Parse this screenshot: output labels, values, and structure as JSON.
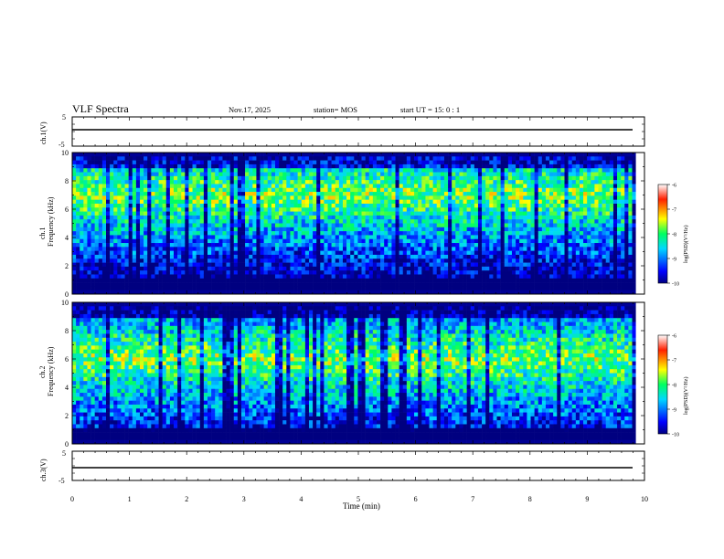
{
  "header": {
    "title": "VLF Spectra",
    "date": "Nov.17, 2025",
    "station": "station= MOS",
    "start": "start  UT =  15: 0  : 1"
  },
  "colorbar_label": "log(PSD)(V²/Hz)",
  "chart_data": [
    {
      "type": "line",
      "name": "ch1-waveform",
      "ylabel": "ch.1(V)",
      "ylim": [
        -5,
        5
      ],
      "ticks": [
        "5",
        "-5"
      ],
      "baseline_value": 0,
      "x_range": [
        0,
        9.85
      ]
    },
    {
      "type": "heatmap",
      "name": "ch1-spectrogram",
      "ylabel": "ch.1\nFrequency (kHz)",
      "ylabel_top": "ch.1",
      "ylabel_bottom": "Frequency (kHz)",
      "ylim": [
        0,
        10
      ],
      "yticks": [
        "0",
        "2",
        "4",
        "6",
        "8",
        "10"
      ],
      "colorbar": {
        "min": -10,
        "max": -6,
        "ticks": [
          "-6",
          "-7",
          "-8",
          "-9",
          "-10"
        ],
        "label": "log(PSD)(V²/Hz)"
      },
      "profile_khz": [
        0.5,
        9.5
      ],
      "dominant_band_khz": [
        5,
        9
      ]
    },
    {
      "type": "heatmap",
      "name": "ch2-spectrogram",
      "ylabel_top": "ch.2",
      "ylabel_bottom": "Frequency (kHz)",
      "ylim": [
        0,
        10
      ],
      "yticks": [
        "0",
        "2",
        "4",
        "6",
        "8",
        "10"
      ],
      "colorbar": {
        "min": -10,
        "max": -6,
        "ticks": [
          "-6",
          "-7",
          "-8",
          "-9",
          "-10"
        ],
        "label": "log(PSD)(V²/Hz)"
      },
      "dominant_band_khz": [
        4,
        8
      ]
    },
    {
      "type": "line",
      "name": "ch3-waveform",
      "ylabel": "ch.3(V)",
      "ylim": [
        -5,
        5
      ],
      "ticks": [
        "5",
        "-5"
      ],
      "baseline_value": 0,
      "x_range": [
        0,
        9.85
      ]
    }
  ],
  "x_axis": {
    "label": "Time  (min)",
    "range": [
      0,
      10
    ],
    "ticks": [
      "0",
      "1",
      "2",
      "3",
      "4",
      "5",
      "6",
      "7",
      "8",
      "9",
      "10"
    ]
  }
}
